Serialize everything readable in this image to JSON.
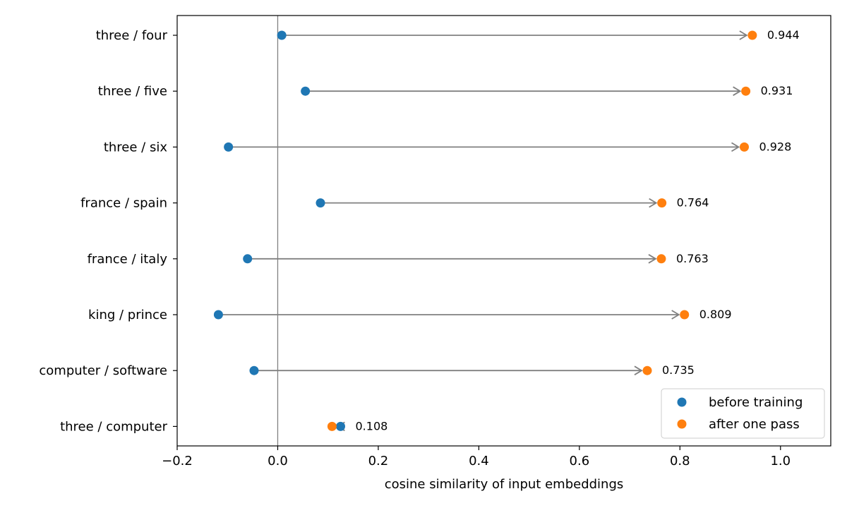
{
  "chart_data": {
    "type": "scatter",
    "xlabel": "cosine similarity of input embeddings",
    "xlim": [
      -0.2,
      1.1
    ],
    "xticks": [
      -0.2,
      0.0,
      0.2,
      0.4,
      0.6,
      0.8,
      1.0
    ],
    "xtick_labels": [
      "−0.2",
      "0.0",
      "0.2",
      "0.4",
      "0.6",
      "0.8",
      "1.0"
    ],
    "reference_line_x": 0.0,
    "grid": false,
    "legend_position": "bottom-right",
    "categories": [
      "three / four",
      "three / five",
      "three / six",
      "france / spain",
      "france / italy",
      "king / prince",
      "computer / software",
      "three / computer"
    ],
    "series": [
      {
        "name": "before training",
        "color": "#1f77b4",
        "values": [
          0.008,
          0.055,
          -0.098,
          0.085,
          -0.06,
          -0.118,
          -0.047,
          0.125
        ]
      },
      {
        "name": "after one pass",
        "color": "#ff7f0e",
        "values": [
          0.944,
          0.931,
          0.928,
          0.764,
          0.763,
          0.809,
          0.735,
          0.108
        ]
      }
    ],
    "value_labels": [
      "0.944",
      "0.931",
      "0.928",
      "0.764",
      "0.763",
      "0.809",
      "0.735",
      "0.108"
    ],
    "arrow_color": "#808080"
  }
}
